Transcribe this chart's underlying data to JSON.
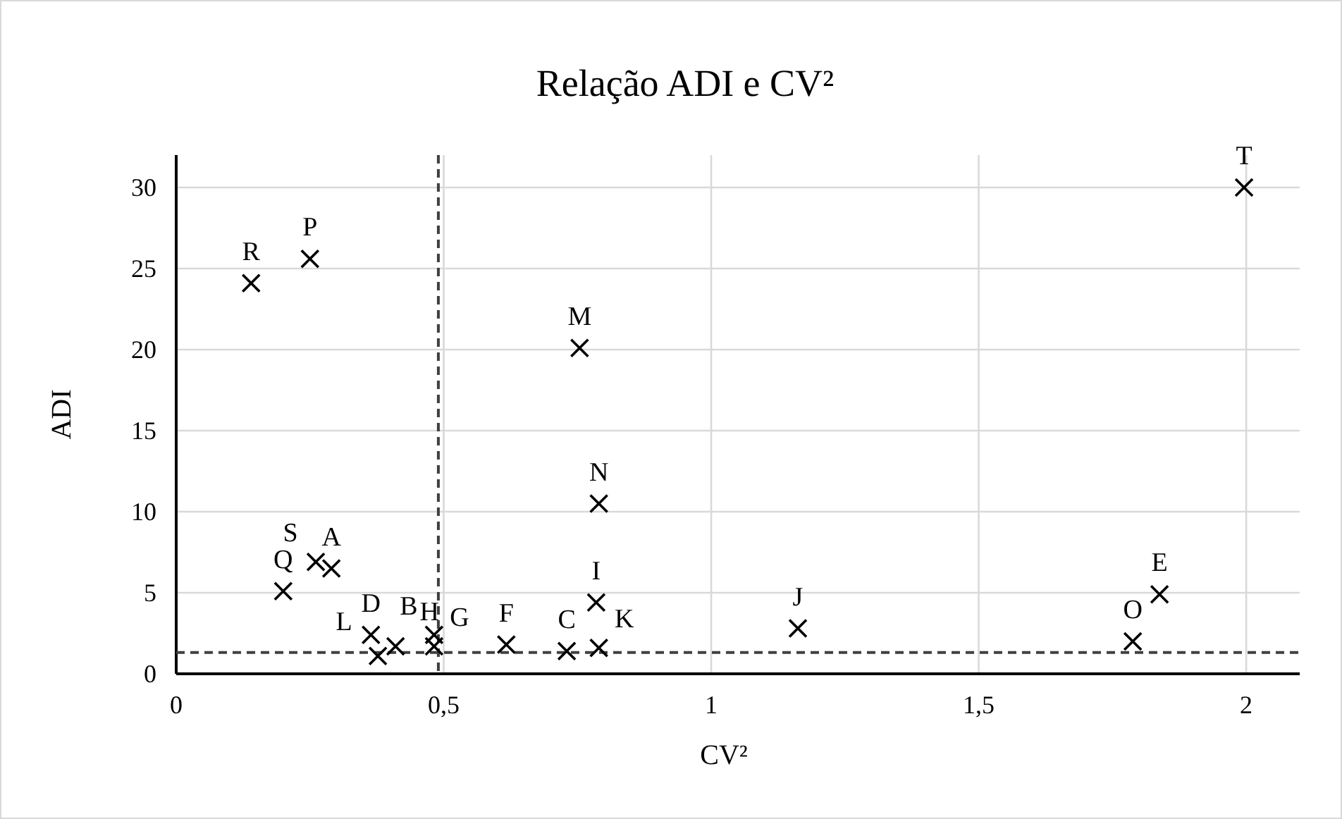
{
  "chart_data": {
    "type": "scatter",
    "title": "Relação ADI e CV²",
    "xlabel": "CV²",
    "ylabel": "ADI",
    "x": [
      0.29,
      0.482,
      0.73,
      0.364,
      1.838,
      0.617,
      0.482,
      0.41,
      0.785,
      1.162,
      0.79,
      0.377,
      0.754,
      0.79,
      1.788,
      0.25,
      0.2,
      0.14,
      0.261,
      1.996
    ],
    "series": [
      {
        "color": "#000000",
        "values": [
          6.5,
          2.4,
          1.4,
          2.4,
          4.9,
          1.8,
          1.7,
          1.7,
          4.4,
          2.8,
          1.6,
          1.1,
          20.1,
          10.5,
          2.0,
          25.6,
          5.1,
          24.1,
          6.9,
          30.0
        ]
      }
    ],
    "annotations": [
      {
        "text": "A",
        "x": 0.29,
        "y": 6.5
      },
      {
        "text": "B",
        "x": 0.482,
        "y": 2.4
      },
      {
        "text": "C",
        "x": 0.73,
        "y": 1.4
      },
      {
        "text": "D",
        "x": 0.364,
        "y": 2.4
      },
      {
        "text": "E",
        "x": 1.838,
        "y": 4.9
      },
      {
        "text": "F",
        "x": 0.617,
        "y": 1.8
      },
      {
        "text": "G",
        "x": 0.482,
        "y": 1.7
      },
      {
        "text": "H",
        "x": 0.41,
        "y": 1.7
      },
      {
        "text": "I",
        "x": 0.785,
        "y": 4.4
      },
      {
        "text": "J",
        "x": 1.162,
        "y": 2.8
      },
      {
        "text": "K",
        "x": 0.79,
        "y": 1.6
      },
      {
        "text": "L",
        "x": 0.377,
        "y": 1.1
      },
      {
        "text": "M",
        "x": 0.754,
        "y": 20.1
      },
      {
        "text": "N",
        "x": 0.79,
        "y": 10.5
      },
      {
        "text": "O",
        "x": 1.788,
        "y": 2.0
      },
      {
        "text": "P",
        "x": 0.25,
        "y": 25.6
      },
      {
        "text": "Q",
        "x": 0.2,
        "y": 5.1
      },
      {
        "text": "R",
        "x": 0.14,
        "y": 24.1
      },
      {
        "text": "S",
        "x": 0.261,
        "y": 6.9
      },
      {
        "text": "T",
        "x": 1.996,
        "y": 30.0
      }
    ],
    "ref_lines": [
      {
        "axis": "x",
        "value": 0.49,
        "color": "#404040",
        "line_style": "dashed"
      },
      {
        "axis": "y",
        "value": 1.32,
        "color": "#404040",
        "line_style": "dashed"
      }
    ],
    "xlim": [
      0,
      2.1
    ],
    "xticks": [
      0,
      {
        "value": 0.5,
        "label": "0,5"
      },
      1,
      {
        "value": 1.5,
        "label": "1,5"
      },
      2
    ],
    "ylim": [
      0,
      32
    ],
    "yticks": [
      0,
      5,
      10,
      15,
      20,
      25,
      30
    ],
    "grid": true,
    "marker": "cross"
  }
}
